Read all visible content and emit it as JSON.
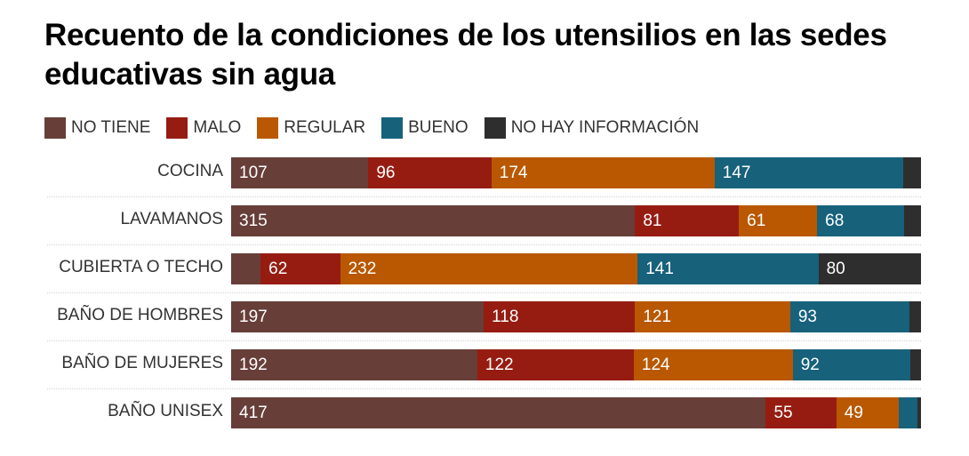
{
  "title": "Recuento de la condiciones de los utensilios en las sedes educativas sin agua",
  "legend": [
    {
      "label": "NO TIENE",
      "color": "#673e38"
    },
    {
      "label": "MALO",
      "color": "#961c12"
    },
    {
      "label": "REGULAR",
      "color": "#b95800"
    },
    {
      "label": "BUENO",
      "color": "#17617b"
    },
    {
      "label": "NO HAY INFORMACIÓN",
      "color": "#2e2e2e"
    }
  ],
  "chart_data": {
    "type": "bar",
    "orientation": "horizontal",
    "stacked": "100%",
    "title": "Recuento de la condiciones de los utensilios en las sedes educativas sin agua",
    "xlabel": "",
    "ylabel": "",
    "legend_position": "top-left",
    "grid": false,
    "categories": [
      "COCINA",
      "LAVAMANOS",
      "CUBIERTA O TECHO",
      "BAÑO DE HOMBRES",
      "BAÑO DE MUJERES",
      "BAÑO UNISEX"
    ],
    "series": [
      {
        "name": "NO TIENE",
        "color": "#673e38",
        "values": [
          107,
          315,
          23,
          197,
          192,
          417
        ],
        "labeled": [
          true,
          true,
          false,
          true,
          true,
          true
        ]
      },
      {
        "name": "MALO",
        "color": "#961c12",
        "values": [
          96,
          81,
          62,
          118,
          122,
          55
        ],
        "labeled": [
          true,
          true,
          true,
          true,
          true,
          true
        ]
      },
      {
        "name": "REGULAR",
        "color": "#b95800",
        "values": [
          174,
          61,
          232,
          121,
          124,
          49
        ],
        "labeled": [
          true,
          true,
          true,
          true,
          true,
          true
        ]
      },
      {
        "name": "BUENO",
        "color": "#17617b",
        "values": [
          147,
          68,
          141,
          93,
          92,
          14
        ],
        "labeled": [
          true,
          true,
          true,
          true,
          true,
          false
        ]
      },
      {
        "name": "NO HAY INFORMACIÓN",
        "color": "#2e2e2e",
        "values": [
          14,
          13,
          80,
          9,
          8,
          3
        ],
        "labeled": [
          false,
          false,
          true,
          false,
          false,
          false
        ]
      }
    ]
  }
}
